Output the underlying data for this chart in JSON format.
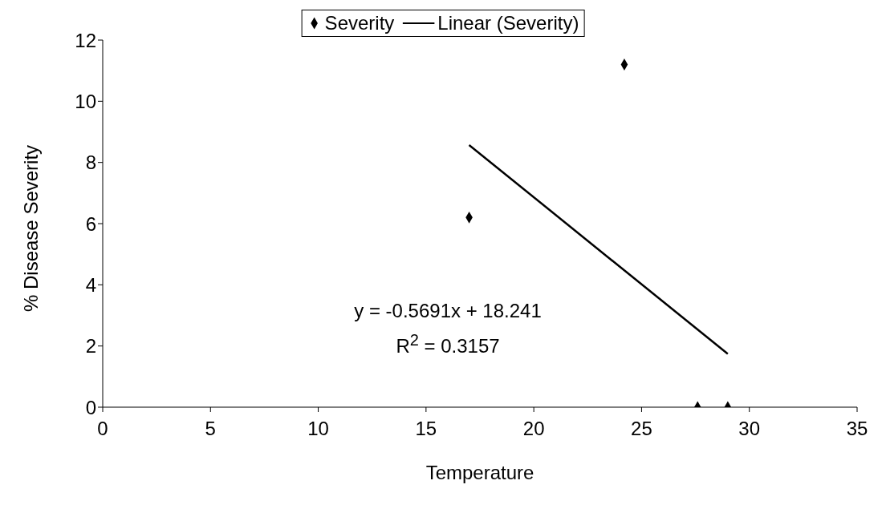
{
  "chart_data": {
    "type": "scatter",
    "xlabel": "Temperature",
    "ylabel": "% Disease Severity",
    "series": [
      {
        "name": "Severity",
        "type": "scatter",
        "color": "#000000",
        "marker": "diamond",
        "x": [
          17.0,
          24.2,
          27.6,
          29.0
        ],
        "values": [
          6.2,
          11.2,
          0,
          0
        ]
      },
      {
        "name": "Linear (Severity)",
        "type": "line",
        "color": "#000000",
        "line_style": "solid",
        "x": [
          17,
          29
        ],
        "values": [
          8.57,
          1.74
        ]
      }
    ],
    "annotations": [
      "y = -0.5691x + 18.241",
      "R$^{2}$ = 0.3157"
    ],
    "xlim": [
      0,
      35
    ],
    "xticks": [
      0,
      5,
      10,
      15,
      20,
      25,
      30,
      35
    ],
    "ylim": [
      0,
      12
    ],
    "yticks": [
      0,
      2,
      4,
      6,
      8,
      10,
      12
    ],
    "grid": false,
    "legend": "top"
  }
}
